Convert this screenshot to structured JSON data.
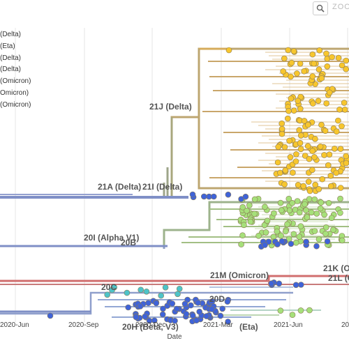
{
  "toolbar": {
    "zoom_label": "ZOO"
  },
  "legend": {
    "items": [
      "(Delta)",
      "(Eta)",
      "(Delta)",
      "(Delta)",
      "(Omicron)",
      "Omicron)",
      "(Omicron)"
    ]
  },
  "clade_labels": {
    "l21J": "21J (Delta)",
    "l21A": "21A (Delta)",
    "l21I": "21I (Delta)",
    "l20I": "20I (Alpha V1)",
    "l20B": "20B",
    "l21M": "21M (Omicron)",
    "l21K": "21K (O",
    "l21L": "21L (O",
    "l20C": "20C",
    "l20D": "20D",
    "l20H": "20H (Beta, V3)",
    "lEta": "(Eta)"
  },
  "axis": {
    "xlabel": "Date",
    "ticks": [
      "2020-Jun",
      "2020-Sep",
      "2020-Dec",
      "2021-Mar",
      "2021-Jun",
      "20"
    ]
  },
  "colors": {
    "delta_tan": "#c8a86a",
    "delta_orange": "#e6b04a",
    "alpha_blue": "#7f8fc6",
    "alpha_green": "#9fbe7a",
    "omicron_red": "#d16e6e",
    "beta_blue": "#5a78cf",
    "dot_yellow": "#f7c62e",
    "dot_green": "#a6e07a",
    "dot_blue": "#3f63d8",
    "dot_cyan": "#4dc3c9",
    "grid": "#e6e6e6"
  }
}
